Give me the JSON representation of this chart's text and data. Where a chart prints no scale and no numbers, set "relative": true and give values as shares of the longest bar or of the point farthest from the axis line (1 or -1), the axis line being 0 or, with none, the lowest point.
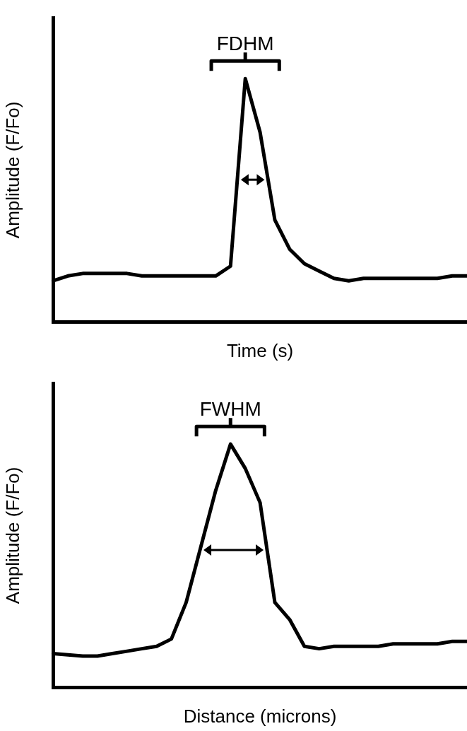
{
  "chart_data": [
    {
      "type": "line",
      "relative": true,
      "xlabel": "Time (s)",
      "ylabel": "Amplitude (F/Fo)",
      "annotations": [
        "FDHM"
      ],
      "grid": false,
      "legend": false,
      "marker": "none",
      "tick_labels": false,
      "categories": [
        null,
        null,
        null,
        null,
        null,
        null,
        null,
        null,
        null,
        null,
        null,
        null,
        null,
        null,
        null,
        null,
        null,
        null,
        null,
        null,
        null,
        null,
        null,
        null,
        null,
        null,
        null,
        null,
        null
      ],
      "series": [
        {
          "color": "#000000",
          "values": [
            0.17,
            0.19,
            0.2,
            0.2,
            0.2,
            0.2,
            0.19,
            0.19,
            0.19,
            0.19,
            0.19,
            0.19,
            0.23,
            1.0,
            0.78,
            0.42,
            0.3,
            0.24,
            0.21,
            0.18,
            0.17,
            0.18,
            0.18,
            0.18,
            0.18,
            0.18,
            0.18,
            0.19,
            0.19
          ]
        }
      ]
    },
    {
      "type": "line",
      "relative": true,
      "xlabel": "Distance (microns)",
      "ylabel": "Amplitude (F/Fo)",
      "annotations": [
        "FWHM"
      ],
      "grid": false,
      "legend": false,
      "marker": "none",
      "tick_labels": false,
      "categories": [
        null,
        null,
        null,
        null,
        null,
        null,
        null,
        null,
        null,
        null,
        null,
        null,
        null,
        null,
        null,
        null,
        null,
        null,
        null,
        null,
        null,
        null,
        null,
        null,
        null,
        null,
        null,
        null,
        null
      ],
      "series": [
        {
          "color": "#000000",
          "values": [
            0.14,
            0.135,
            0.13,
            0.13,
            0.14,
            0.15,
            0.16,
            0.17,
            0.2,
            0.35,
            0.58,
            0.81,
            1.0,
            0.9,
            0.76,
            0.35,
            0.28,
            0.17,
            0.16,
            0.17,
            0.17,
            0.17,
            0.17,
            0.18,
            0.18,
            0.18,
            0.18,
            0.19,
            0.19
          ]
        }
      ]
    }
  ]
}
